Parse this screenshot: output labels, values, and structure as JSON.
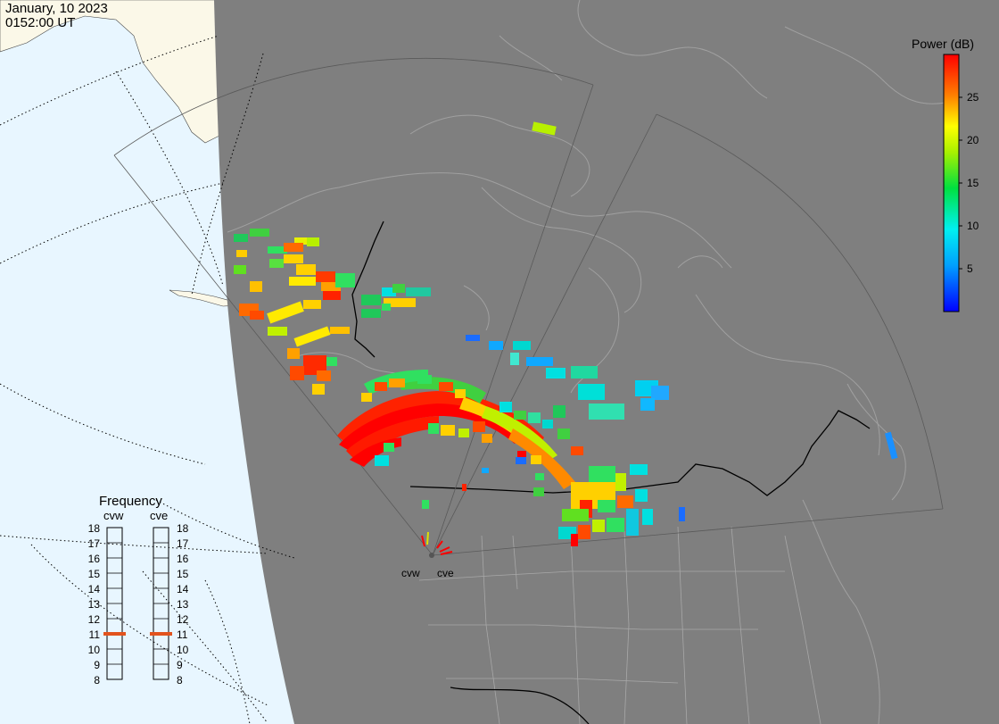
{
  "header": {
    "date": "January, 10 2023",
    "time": "0152:00 UT"
  },
  "colorbar": {
    "title": "Power (dB)",
    "range": [
      0,
      30
    ],
    "ticks": [
      5,
      10,
      15,
      20,
      25
    ]
  },
  "frequency_panel": {
    "title": "Frequency",
    "scale": [
      8,
      18
    ],
    "radars": [
      {
        "code": "cvw",
        "frequency_mhz": 11
      },
      {
        "code": "cve",
        "frequency_mhz": 11
      }
    ]
  },
  "radar_sites": {
    "west_label": "cvw",
    "east_label": "cve"
  },
  "colors": {
    "ocean": "#e8f6ff",
    "land_outside": "#fbf8e8",
    "night_land": "#7f7f7f",
    "coastline_night": "#a0a0a0",
    "border": "#000000",
    "frequency_marker": "#e2531d"
  }
}
